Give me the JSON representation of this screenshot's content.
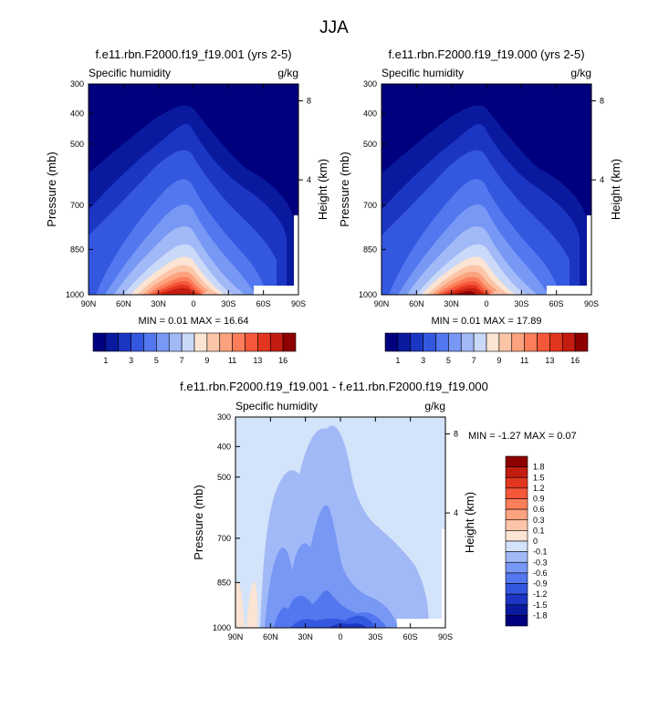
{
  "figure": {
    "title": "JJA"
  },
  "palettes": {
    "abs": [
      "#00007f",
      "#0a1a9e",
      "#1c36c4",
      "#3457e0",
      "#5277ee",
      "#7798f4",
      "#a2b9f7",
      "#cbd9f9",
      "#fbe4d3",
      "#fcc5a8",
      "#fca27e",
      "#fb7d59",
      "#f4573a",
      "#e2361f",
      "#c31c10",
      "#8f0000"
    ],
    "diff": [
      "#00007f",
      "#0a1a9e",
      "#1c36c4",
      "#3457e0",
      "#5277ee",
      "#7798f4",
      "#a2b9f7",
      "#d3e3fa",
      "#fbe4d3",
      "#fcc5a8",
      "#fca27e",
      "#fb7d59",
      "#f4573a",
      "#e2361f",
      "#c31c10",
      "#8f0000"
    ]
  },
  "chart_data": [
    {
      "type": "contour",
      "title": "f.e11.rbn.F2000.f19_f19.001 (yrs 2-5)",
      "left_string": "Specific humidity",
      "right_string": "g/kg",
      "ylabel": "Pressure (mb)",
      "ylabel_right": "Height (km)",
      "x_ticks": [
        "90N",
        "60N",
        "30N",
        "0",
        "30S",
        "60S",
        "90S"
      ],
      "y_ticks": [
        "300",
        "400",
        "500",
        "700",
        "850",
        "1000"
      ],
      "y_ticks_right": [
        "8",
        "4"
      ],
      "min_max_text": "MIN =   0.01   MAX =  16.64",
      "colorbar_labels": [
        "1",
        "3",
        "5",
        "7",
        "9",
        "11",
        "13",
        "16"
      ]
    },
    {
      "type": "contour",
      "title": "f.e11.rbn.F2000.f19_f19.000 (yrs 2-5)",
      "left_string": "Specific humidity",
      "right_string": "g/kg",
      "ylabel": "Pressure (mb)",
      "ylabel_right": "Height (km)",
      "x_ticks": [
        "90N",
        "60N",
        "30N",
        "0",
        "30S",
        "60S",
        "90S"
      ],
      "y_ticks": [
        "300",
        "400",
        "500",
        "700",
        "850",
        "1000"
      ],
      "y_ticks_right": [
        "8",
        "4"
      ],
      "min_max_text": "MIN =   0.01   MAX =  17.89",
      "colorbar_labels": [
        "1",
        "3",
        "5",
        "7",
        "9",
        "11",
        "13",
        "16"
      ]
    },
    {
      "type": "contour",
      "title": "f.e11.rbn.F2000.f19_f19.001 - f.e11.rbn.F2000.f19_f19.000",
      "left_string": "Specific humidity",
      "right_string": "g/kg",
      "ylabel": "Pressure (mb)",
      "ylabel_right": "Height (km)",
      "x_ticks": [
        "90N",
        "60N",
        "30N",
        "0",
        "30S",
        "60S",
        "90S"
      ],
      "y_ticks": [
        "300",
        "400",
        "500",
        "700",
        "850",
        "1000"
      ],
      "y_ticks_right": [
        "8",
        "4"
      ],
      "min_max_text": "MIN =  -1.27   MAX =   0.07",
      "colorbar_labels": [
        "1.8",
        "1.5",
        "1.2",
        "0.9",
        "0.6",
        "0.3",
        "0.1",
        "0",
        "-0.1",
        "-0.3",
        "-0.6",
        "-0.9",
        "-1.2",
        "-1.5",
        "-1.8"
      ]
    }
  ]
}
